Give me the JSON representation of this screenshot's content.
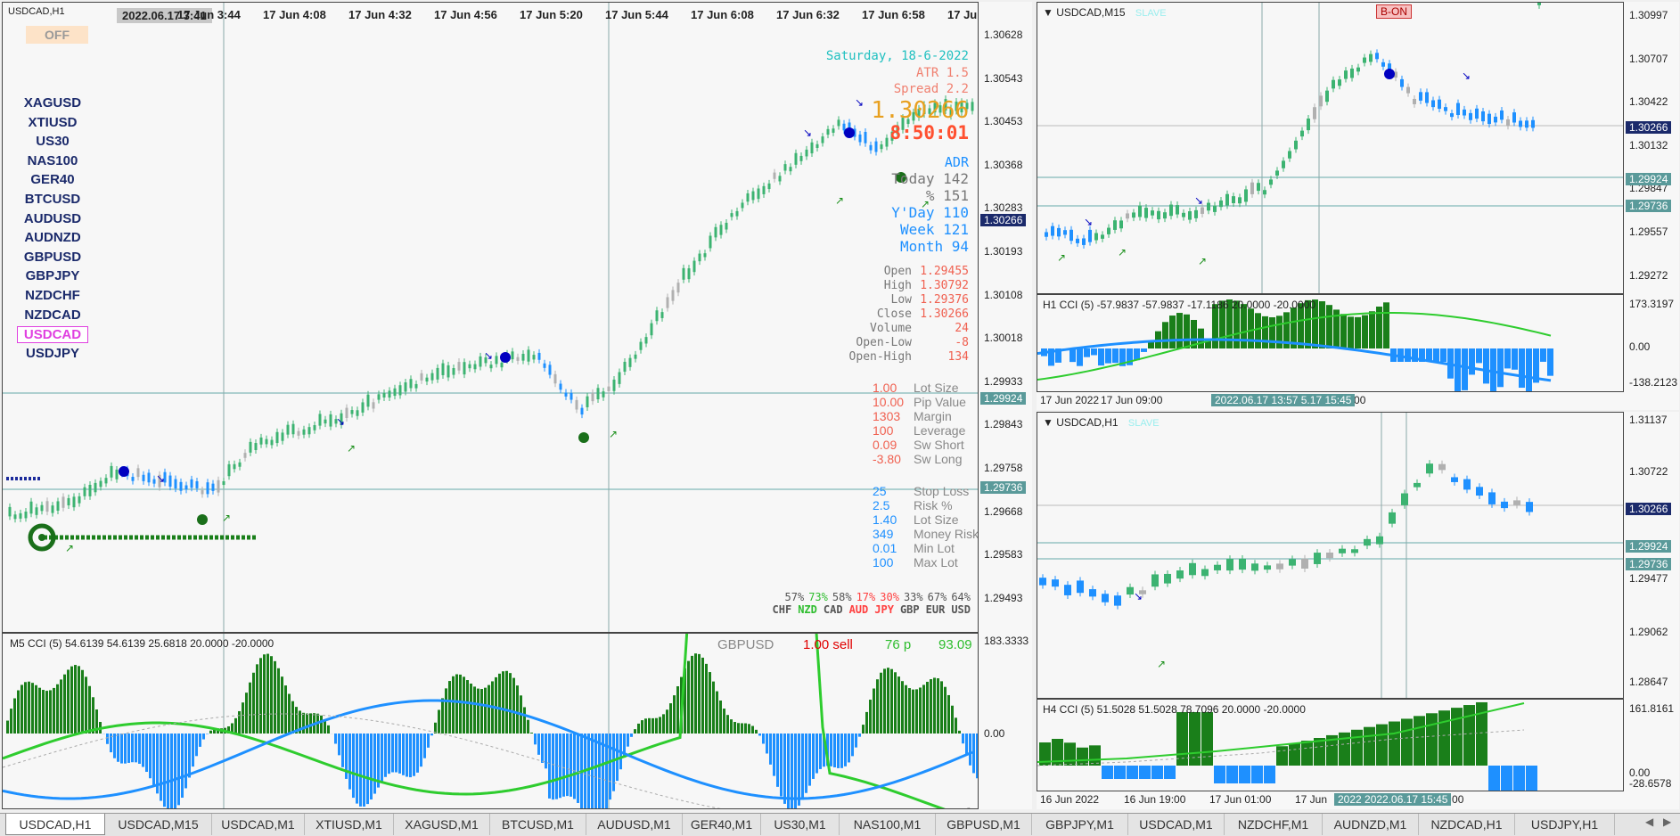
{
  "main": {
    "title": "USDCAD,H1",
    "time_labels": [
      "17 Jun 2022",
      "17 Jun 3:20",
      "17 Jun 3:44",
      "17 Jun 4:08",
      "17 Jun 4:32",
      "17 Jun 4:56",
      "17 Jun 5:20",
      "17 Jun 5:44",
      "17 Jun 6:08",
      "17 Jun 6:32",
      "17 Jun 6:58",
      "17 Ju"
    ],
    "crosshair_time": "2022.06.17 3:41",
    "off_button": "OFF",
    "symbols": [
      "XAGUSD",
      "XTIUSD",
      "US30",
      "NAS100",
      "GER40",
      "BTCUSD",
      "AUDUSD",
      "AUDNZD",
      "GBPUSD",
      "GBPJPY",
      "NZDCHF",
      "NZDCAD",
      "USDCAD",
      "USDJPY"
    ],
    "price_labels": [
      "1.30628",
      "1.30543",
      "1.30453",
      "1.30368",
      "1.30283",
      "1.30193",
      "1.30108",
      "1.30018",
      "1.29933",
      "1.29843",
      "1.29758",
      "1.29668",
      "1.29583",
      "1.29493"
    ],
    "current_price_tag": "1.30266",
    "hline_tags": [
      "1.29924",
      "1.29736"
    ],
    "info": {
      "date": "Saturday, 18-6-2022",
      "atr": "ATR 1.5",
      "spread": "Spread 2.2",
      "price": "1.30266",
      "clock": "8:50:01",
      "adr_title": "ADR",
      "today": "Today 142",
      "pct": "% 151",
      "yday": "Y'Day 110",
      "week": "Week 121",
      "month": "Month  94",
      "ohlc": [
        {
          "label": "Open",
          "value": "1.29455"
        },
        {
          "label": "High",
          "value": "1.30792"
        },
        {
          "label": "Low",
          "value": "1.29376"
        },
        {
          "label": "Close",
          "value": "1.30266"
        },
        {
          "label": "Volume",
          "value": "24"
        },
        {
          "label": "Open-Low",
          "value": "-8"
        },
        {
          "label": "Open-High",
          "value": "134"
        }
      ],
      "lot": [
        {
          "value": "1.00",
          "label": "Lot Size"
        },
        {
          "value": "10.00",
          "label": "Pip Value"
        },
        {
          "value": "1303",
          "label": "Margin"
        },
        {
          "value": "100",
          "label": "Leverage"
        },
        {
          "value": "0.09",
          "label": "Sw Short"
        },
        {
          "value": "-3.80",
          "label": "Sw Long"
        }
      ],
      "risk": [
        {
          "value": "25",
          "label": "Stop Loss"
        },
        {
          "value": "2.5",
          "label": "Risk %"
        },
        {
          "value": "1.40",
          "label": "Lot Size"
        },
        {
          "value": "349",
          "label": "Money Risk"
        },
        {
          "value": "0.01",
          "label": "Min Lot"
        },
        {
          "value": "100",
          "label": "Max Lot"
        }
      ],
      "strength": [
        {
          "pct": "57%",
          "cur": "CHF",
          "color": "#555555"
        },
        {
          "pct": "73%",
          "cur": "NZD",
          "color": "#2ebd2e"
        },
        {
          "pct": "58%",
          "cur": "CAD",
          "color": "#555555"
        },
        {
          "pct": "17%",
          "cur": "AUD",
          "color": "#ff4040"
        },
        {
          "pct": "30%",
          "cur": "JPY",
          "color": "#ff4040"
        },
        {
          "pct": "33%",
          "cur": "GBP",
          "color": "#555555"
        },
        {
          "pct": "67%",
          "cur": "EUR",
          "color": "#555555"
        },
        {
          "pct": "64%",
          "cur": "USD",
          "color": "#555555"
        }
      ]
    },
    "cci": {
      "title": "M5 CCI (5) 54.6139 54.6139 25.6818 20.0000 -20.0000",
      "pair": "GBPUSD",
      "signal": "1.00 sell",
      "pips": "76 p",
      "value": "93.09",
      "levels": [
        "183.3333",
        "0.00"
      ]
    }
  },
  "m15": {
    "title": "USDCAD,M15",
    "slave": "SLAVE",
    "bon": "B-ON",
    "price_labels": [
      "1.30997",
      "1.30707",
      "1.30422",
      "1.30132",
      "1.29847",
      "1.29557",
      "1.29272"
    ],
    "current_price_tag": "1.30266",
    "hline_tags": [
      "1.29924",
      "1.29736"
    ],
    "cci_title": "H1 CCI (5) -57.9837 -57.9837 -17.1186 20.0000 -20.0000",
    "cci_levels": [
      "173.3197",
      "0.00",
      "-138.2123"
    ],
    "time_labels": [
      "17 Jun 2022",
      "17 Jun 09:00",
      "17 Jun 18:00",
      "17 Jun 21:00"
    ],
    "crosshair_time": "2022.06.17 13:57 5.17 15:45"
  },
  "h1": {
    "title": "USDCAD,H1",
    "slave": "SLAVE",
    "price_labels": [
      "1.31137",
      "1.30722",
      "1.29477",
      "1.29062",
      "1.28647"
    ],
    "current_price_tag": "1.30266",
    "hline_tags": [
      "1.29924",
      "1.29736"
    ],
    "cci_title": "H4 CCI (5) 51.5028 51.5028 78.7096 20.0000 -20.0000",
    "cci_levels": [
      "161.8161",
      "0.00",
      "-28.6578"
    ],
    "time_labels": [
      "16 Jun 2022",
      "16 Jun 19:00",
      "17 Jun 01:00",
      "17 Jun",
      "17 Jun 19:00"
    ],
    "crosshair_time": "2022 2022.06.17 15:45"
  },
  "tabs": [
    "USDCAD,H1",
    "USDCAD,M15",
    "USDCAD,M1",
    "XTIUSD,M1",
    "XAGUSD,M1",
    "BTCUSD,M1",
    "AUDUSD,M1",
    "GER40,M1",
    "US30,M1",
    "NAS100,M1",
    "GBPUSD,M1",
    "GBPJPY,M1",
    "USDCAD,M1",
    "NZDCHF,M1",
    "AUDNZD,M1",
    "NZDCAD,H1",
    "USDJPY,H1"
  ],
  "tab_arrows": [
    "◀",
    "▶"
  ],
  "colors": {
    "bull": "#3cb371",
    "bear": "#1e90ff",
    "neutral": "#b0b0b0",
    "hist_green": "#1a7f1a",
    "hist_blue": "#1e90ff",
    "cci_line": "#2ecc2e",
    "cci_blue": "#1e90ff"
  }
}
